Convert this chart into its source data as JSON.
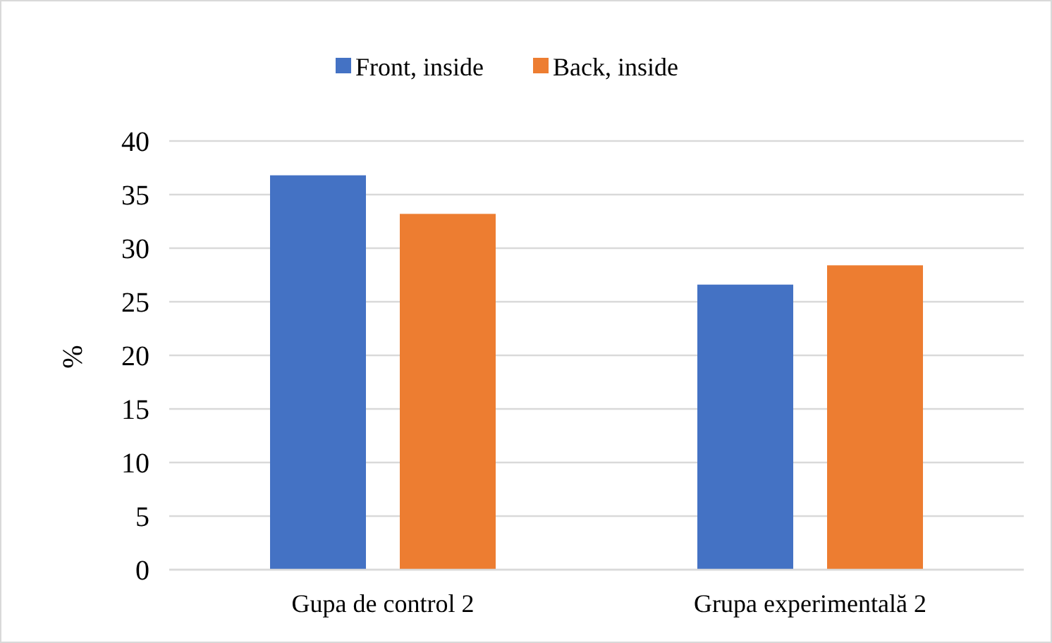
{
  "chart_data": {
    "type": "bar",
    "ylabel": "%",
    "categories": [
      "Gupa de control 2",
      "Grupa experimentală 2"
    ],
    "series": [
      {
        "name": "Front, inside",
        "color": "#4472c4",
        "values": [
          36.8,
          26.6
        ]
      },
      {
        "name": "Back, inside",
        "color": "#ed7d31",
        "values": [
          33.2,
          28.4
        ]
      }
    ],
    "ylim": [
      0,
      40
    ],
    "yticks": [
      0,
      5,
      10,
      15,
      20,
      25,
      30,
      35,
      40
    ],
    "grid": "y",
    "legend": "top"
  }
}
